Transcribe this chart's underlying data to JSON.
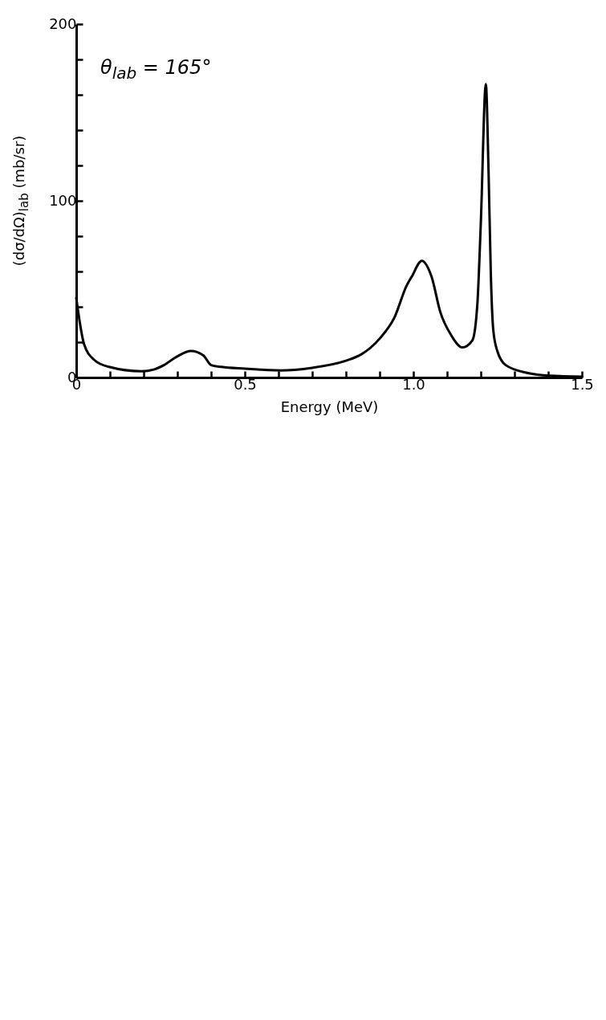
{
  "chart_data": {
    "type": "line",
    "xlabel": "Energy (MeV)",
    "ylabel": "(dσ/dΩ)$_{lab}$ (mb/sr)",
    "annotations": [
      "θ$_{lab}$ = 165°"
    ],
    "x": [
      0,
      0.023,
      0.053,
      0.097,
      0.194,
      0.23,
      0.26,
      0.3,
      0.34,
      0.377,
      0.4,
      0.43,
      0.5,
      0.605,
      0.7,
      0.8,
      0.845,
      0.9,
      0.944,
      0.98,
      0.995,
      1.025,
      1.054,
      1.08,
      1.112,
      1.145,
      1.175,
      1.19,
      1.2,
      1.215,
      1.223,
      1.23,
      1.237,
      1.249,
      1.274,
      1.34,
      1.405,
      1.5
    ],
    "series": [
      {
        "color": "#000000",
        "values": [
          45,
          19,
          10,
          6,
          3.5,
          4.5,
          7,
          12,
          15,
          12.5,
          7,
          6,
          5,
          4,
          5.5,
          9.5,
          13,
          22,
          34,
          52,
          57,
          66,
          57,
          37,
          24,
          17,
          21,
          42,
          87,
          166,
          117,
          57,
          27,
          15,
          7,
          2.5,
          1,
          0.5
        ]
      }
    ],
    "xlim": [
      0,
      1.5
    ],
    "ylim": [
      0,
      200
    ],
    "xticks": [
      0,
      {
        "value": 0.1,
        "label": null
      },
      {
        "value": 0.2,
        "label": null
      },
      {
        "value": 0.3,
        "label": null
      },
      {
        "value": 0.4,
        "label": null
      },
      0.5,
      {
        "value": 0.6,
        "label": null
      },
      {
        "value": 0.7,
        "label": null
      },
      {
        "value": 0.8,
        "label": null
      },
      {
        "value": 0.9,
        "label": null
      },
      {
        "value": 1,
        "label": "1.0"
      },
      {
        "value": 1.1,
        "label": null
      },
      {
        "value": 1.2,
        "label": null
      },
      {
        "value": 1.3,
        "label": null
      },
      {
        "value": 1.4,
        "label": null
      },
      1.5
    ],
    "yticks": [
      0,
      {
        "value": 20,
        "label": null
      },
      {
        "value": 40,
        "label": null
      },
      {
        "value": 60,
        "label": null
      },
      {
        "value": 80,
        "label": null
      },
      100,
      {
        "value": 120,
        "label": null
      },
      {
        "value": 140,
        "label": null
      },
      {
        "value": 160,
        "label": null
      },
      {
        "value": 180,
        "label": null
      },
      200
    ],
    "grid": false
  }
}
